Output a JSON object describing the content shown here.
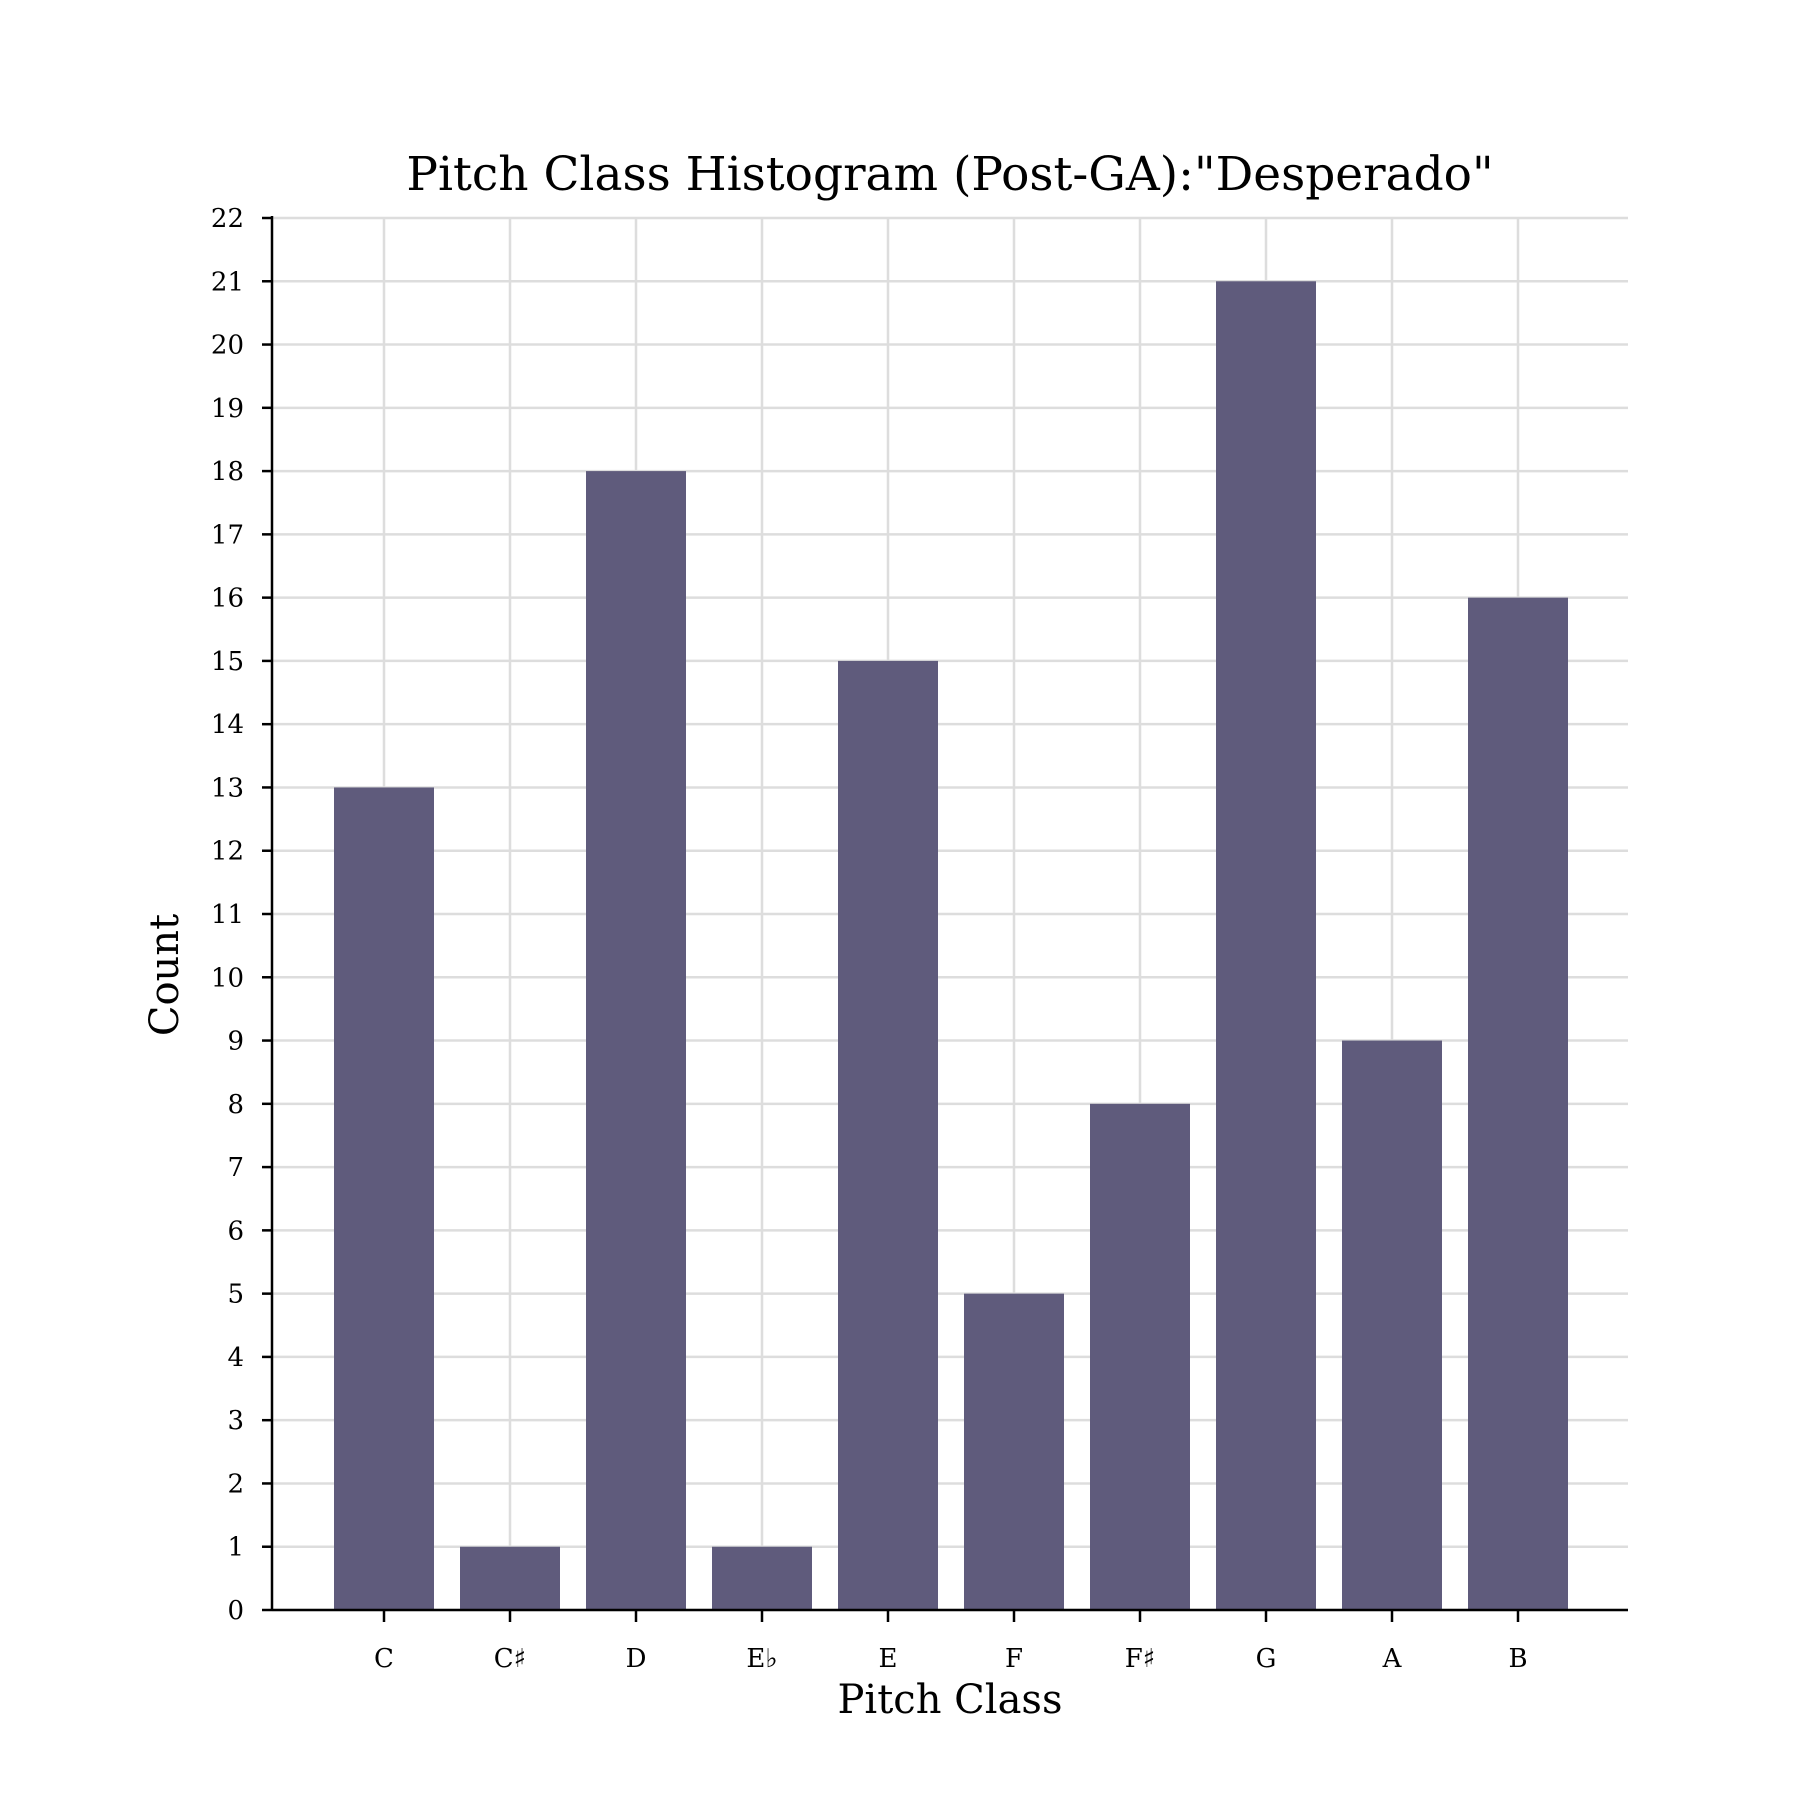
{
  "chart_data": {
    "type": "bar",
    "title": "Pitch Class Histogram (Post-GA):\"Desperado\"",
    "xlabel": "Pitch Class",
    "ylabel": "Count",
    "categories": [
      "C",
      "C♯",
      "D",
      "E♭",
      "E",
      "F",
      "F♯",
      "G",
      "A",
      "B"
    ],
    "values": [
      13,
      1,
      18,
      1,
      15,
      5,
      8,
      21,
      9,
      16
    ],
    "ylim": [
      0,
      22
    ],
    "yticks": [
      "0",
      "1",
      "2",
      "3",
      "4",
      "5",
      "6",
      "7",
      "8",
      "9",
      "10",
      "11",
      "12",
      "13",
      "14",
      "15",
      "16",
      "17",
      "18",
      "19",
      "20",
      "21",
      "22"
    ],
    "grid": true,
    "bar_color": "#5f5b7c",
    "grid_color": "#dddddd"
  }
}
